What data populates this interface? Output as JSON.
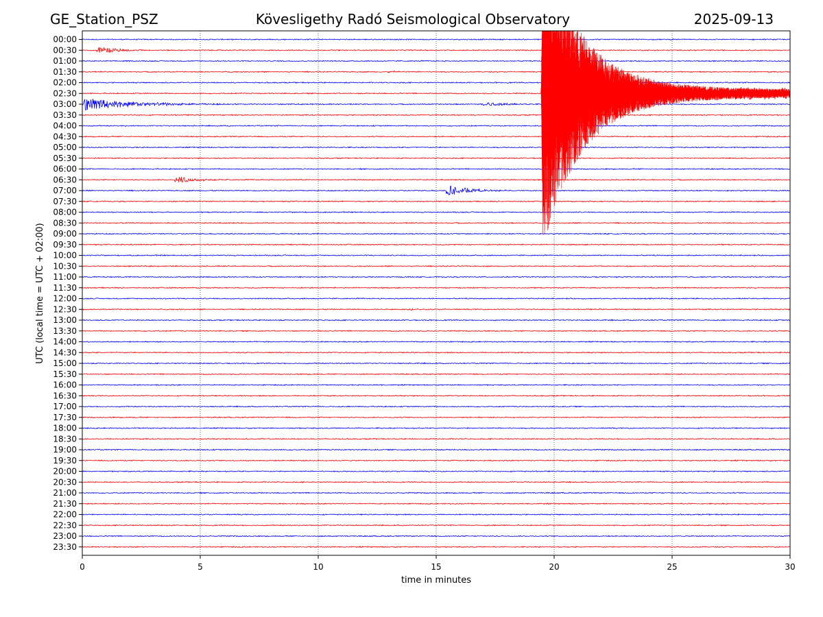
{
  "header": {
    "station": "GE_Station_PSZ",
    "title": "Kövesligethy Radó Seismological Observatory",
    "date": "2025-09-13"
  },
  "chart_data": {
    "type": "line",
    "title": "Kövesligethy Radó Seismological Observatory",
    "xlabel": "time in minutes",
    "ylabel": "UTC (local time = UTC + 02:00)",
    "xlim": [
      0,
      30
    ],
    "x_ticks": [
      0,
      5,
      10,
      15,
      20,
      25,
      30
    ],
    "grid": "vertical dotted at x ticks",
    "rows": [
      "00:00",
      "00:30",
      "01:00",
      "01:30",
      "02:00",
      "02:30",
      "03:00",
      "03:30",
      "04:00",
      "04:30",
      "05:00",
      "05:30",
      "06:00",
      "06:30",
      "07:00",
      "07:30",
      "08:00",
      "08:30",
      "09:00",
      "09:30",
      "10:00",
      "10:30",
      "11:00",
      "11:30",
      "12:00",
      "12:30",
      "13:00",
      "13:30",
      "14:00",
      "14:30",
      "15:00",
      "15:30",
      "16:00",
      "16:30",
      "17:00",
      "17:30",
      "18:00",
      "18:30",
      "19:00",
      "19:30",
      "20:00",
      "20:30",
      "21:00",
      "21:30",
      "22:00",
      "22:30",
      "23:00",
      "23:30"
    ],
    "row_colors": [
      "#0000ff",
      "#ff0000"
    ],
    "events": [
      {
        "row": "00:30",
        "start_min": 0.5,
        "end_min": 2.8,
        "peak_rows": 0.35,
        "decay_min": 0.7,
        "rise_min": 0.3,
        "color": "#ff0000"
      },
      {
        "row": "01:30",
        "start_min": 12.9,
        "end_min": 13.8,
        "peak_rows": 0.08,
        "decay_min": 0.4,
        "rise_min": 0.1,
        "color": "#ff0000"
      },
      {
        "row": "03:00",
        "start_min": 0.0,
        "end_min": 11.0,
        "peak_rows": 0.6,
        "decay_min": 2.0,
        "rise_min": 0.05,
        "color": "#0000ff"
      },
      {
        "row": "03:00",
        "start_min": 16.8,
        "end_min": 19.0,
        "peak_rows": 0.15,
        "decay_min": 1.2,
        "rise_min": 0.4,
        "color": "#0000ff"
      },
      {
        "row": "06:30",
        "start_min": 3.9,
        "end_min": 6.4,
        "peak_rows": 0.32,
        "decay_min": 0.9,
        "rise_min": 0.05,
        "color": "#ff0000"
      },
      {
        "row": "07:00",
        "start_min": 15.4,
        "end_min": 18.3,
        "peak_rows": 0.55,
        "decay_min": 0.9,
        "rise_min": 0.05,
        "color": "#0000ff"
      },
      {
        "row": "12:30",
        "start_min": 13.6,
        "end_min": 14.6,
        "peak_rows": 0.08,
        "decay_min": 0.5,
        "rise_min": 0.2,
        "color": "#ff0000"
      },
      {
        "row": "02:30",
        "start_min": 19.45,
        "end_min": 30.0,
        "peak_rows": 14.0,
        "decay_min": 1.6,
        "rise_min": 0.08,
        "tail_rows": 0.5,
        "color": "#ff0000",
        "clip_top_row": -0.8
      }
    ]
  }
}
